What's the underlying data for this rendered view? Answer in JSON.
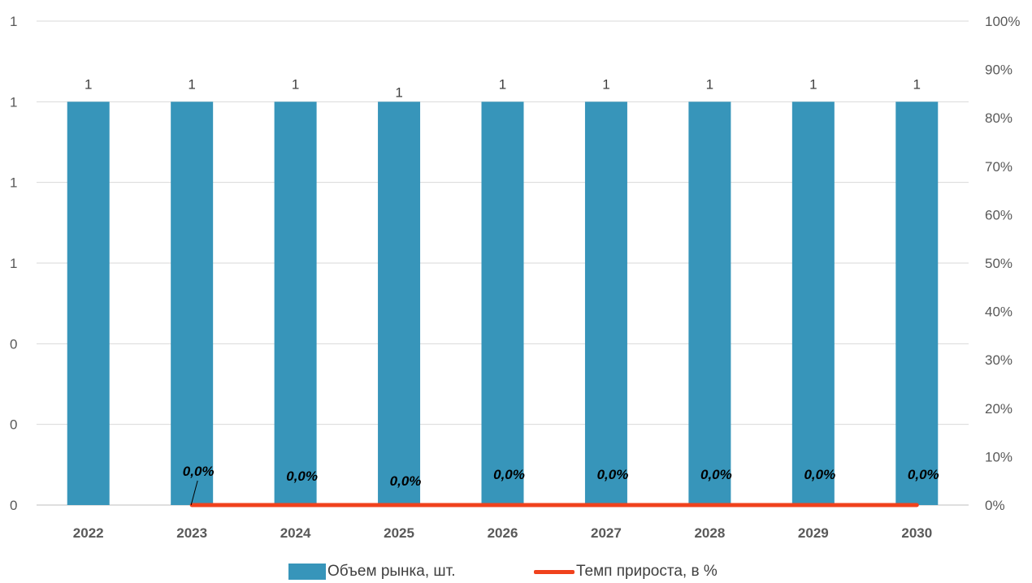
{
  "chart_data": {
    "type": "bar",
    "categories": [
      "2022",
      "2023",
      "2024",
      "2025",
      "2026",
      "2027",
      "2028",
      "2029",
      "2030"
    ],
    "series": [
      {
        "name": "Объем рынка, шт.",
        "kind": "bar",
        "axis": "left",
        "color": "#3795BA",
        "values": [
          1,
          1,
          1,
          1,
          1,
          1,
          1,
          1,
          1
        ],
        "data_labels": [
          "1",
          "1",
          "1",
          "1",
          "1",
          "1",
          "1",
          "1",
          "1"
        ]
      },
      {
        "name": "Темп прироста, в %",
        "kind": "line",
        "axis": "right",
        "color": "#F0421D",
        "values": [
          null,
          0,
          0,
          0,
          0,
          0,
          0,
          0,
          0
        ],
        "data_labels": [
          "",
          "0,0%",
          "0,0%",
          "0,0%",
          "0,0%",
          "0,0%",
          "0,0%",
          "0,0%",
          "0,0%"
        ]
      }
    ],
    "y_left": {
      "tick_labels": [
        "0",
        "0",
        "0",
        "1",
        "1",
        "1",
        "1"
      ],
      "ylim": [
        0,
        1.2
      ]
    },
    "y_right": {
      "tick_labels": [
        "0%",
        "10%",
        "20%",
        "30%",
        "40%",
        "50%",
        "60%",
        "70%",
        "80%",
        "90%",
        "100%"
      ],
      "ylim": [
        0,
        1.0
      ]
    },
    "grid": true,
    "legend_position": "bottom"
  },
  "legend": {
    "bar_label": "Объем рынка, шт.",
    "line_label": "Темп прироста, в %"
  }
}
